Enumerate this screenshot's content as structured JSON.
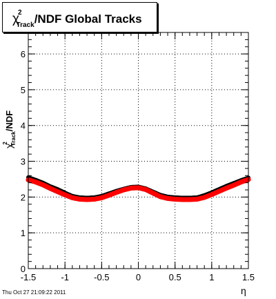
{
  "chart_data": {
    "type": "scatter",
    "title": {
      "main": "χ",
      "sup": "2",
      "sub": "Track",
      "rest": "/NDF  Global Tracks"
    },
    "xlabel": "η",
    "ylabel": {
      "main": "χ",
      "sup": "2",
      "sub": "Track",
      "rest": "/NDF"
    },
    "xlim": [
      -1.5,
      1.5
    ],
    "ylim": [
      0,
      6.6
    ],
    "xticks": [
      -1.5,
      -1,
      -0.5,
      0,
      0.5,
      1,
      1.5
    ],
    "xtick_labels": [
      "-1.5",
      "-1",
      "-0.5",
      "0",
      "0.5",
      "1",
      "1.5"
    ],
    "yticks": [
      0,
      1,
      2,
      3,
      4,
      5,
      6
    ],
    "ytick_labels": [
      "0",
      "1",
      "2",
      "3",
      "4",
      "5",
      "6"
    ],
    "grid": true,
    "series": [
      {
        "color": "#000000",
        "x": [
          -1.5,
          -1.4,
          -1.3,
          -1.2,
          -1.1,
          -1.0,
          -0.9,
          -0.8,
          -0.7,
          -0.6,
          -0.5,
          -0.4,
          -0.3,
          -0.2,
          -0.1,
          0.0,
          0.1,
          0.2,
          0.3,
          0.4,
          0.5,
          0.6,
          0.7,
          0.8,
          0.9,
          1.0,
          1.1,
          1.2,
          1.3,
          1.4,
          1.5
        ],
        "y": [
          2.55,
          2.48,
          2.4,
          2.3,
          2.22,
          2.12,
          2.03,
          1.99,
          1.98,
          1.99,
          2.03,
          2.1,
          2.17,
          2.23,
          2.28,
          2.29,
          2.24,
          2.15,
          2.06,
          2.01,
          1.99,
          1.98,
          1.98,
          1.99,
          2.05,
          2.13,
          2.22,
          2.31,
          2.39,
          2.47,
          2.54
        ]
      },
      {
        "color": "#ff0000",
        "x": [
          -1.5,
          -1.4,
          -1.3,
          -1.2,
          -1.1,
          -1.0,
          -0.9,
          -0.8,
          -0.7,
          -0.6,
          -0.5,
          -0.4,
          -0.3,
          -0.2,
          -0.1,
          0.0,
          0.1,
          0.2,
          0.3,
          0.4,
          0.5,
          0.6,
          0.7,
          0.8,
          0.9,
          1.0,
          1.1,
          1.2,
          1.3,
          1.4,
          1.5
        ],
        "y": [
          2.48,
          2.42,
          2.34,
          2.24,
          2.15,
          2.06,
          1.98,
          1.94,
          1.93,
          1.94,
          1.98,
          2.05,
          2.13,
          2.2,
          2.25,
          2.26,
          2.21,
          2.11,
          2.01,
          1.96,
          1.94,
          1.93,
          1.93,
          1.94,
          1.99,
          2.07,
          2.16,
          2.25,
          2.33,
          2.42,
          2.49
        ]
      }
    ]
  },
  "footer": "Thu Oct 27 21:09:22 2011"
}
